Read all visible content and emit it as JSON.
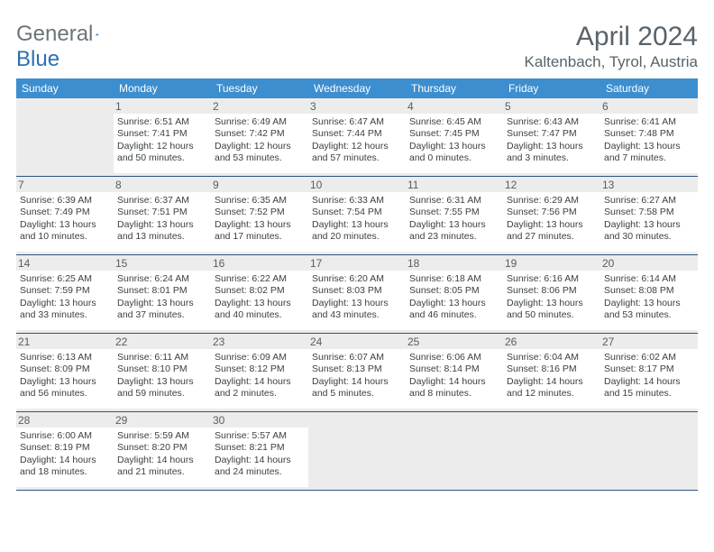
{
  "brand": {
    "text1": "General",
    "text2": "Blue",
    "color1": "#6b7478",
    "color2": "#2d6fb5"
  },
  "title": "April 2024",
  "location": "Kaltenbach, Tyrol, Austria",
  "colors": {
    "headerBar": "#3d8ecf",
    "headerText": "#ffffff",
    "cellHeader": "#ececec",
    "rule": "#2f557e",
    "text": "#3b3f42",
    "titleColor": "#58636a"
  },
  "daysOfWeek": [
    "Sunday",
    "Monday",
    "Tuesday",
    "Wednesday",
    "Thursday",
    "Friday",
    "Saturday"
  ],
  "weeks": [
    [
      null,
      {
        "n": "1",
        "sr": "6:51 AM",
        "ss": "7:41 PM",
        "dl": "12 hours and 50 minutes."
      },
      {
        "n": "2",
        "sr": "6:49 AM",
        "ss": "7:42 PM",
        "dl": "12 hours and 53 minutes."
      },
      {
        "n": "3",
        "sr": "6:47 AM",
        "ss": "7:44 PM",
        "dl": "12 hours and 57 minutes."
      },
      {
        "n": "4",
        "sr": "6:45 AM",
        "ss": "7:45 PM",
        "dl": "13 hours and 0 minutes."
      },
      {
        "n": "5",
        "sr": "6:43 AM",
        "ss": "7:47 PM",
        "dl": "13 hours and 3 minutes."
      },
      {
        "n": "6",
        "sr": "6:41 AM",
        "ss": "7:48 PM",
        "dl": "13 hours and 7 minutes."
      }
    ],
    [
      {
        "n": "7",
        "sr": "6:39 AM",
        "ss": "7:49 PM",
        "dl": "13 hours and 10 minutes."
      },
      {
        "n": "8",
        "sr": "6:37 AM",
        "ss": "7:51 PM",
        "dl": "13 hours and 13 minutes."
      },
      {
        "n": "9",
        "sr": "6:35 AM",
        "ss": "7:52 PM",
        "dl": "13 hours and 17 minutes."
      },
      {
        "n": "10",
        "sr": "6:33 AM",
        "ss": "7:54 PM",
        "dl": "13 hours and 20 minutes."
      },
      {
        "n": "11",
        "sr": "6:31 AM",
        "ss": "7:55 PM",
        "dl": "13 hours and 23 minutes."
      },
      {
        "n": "12",
        "sr": "6:29 AM",
        "ss": "7:56 PM",
        "dl": "13 hours and 27 minutes."
      },
      {
        "n": "13",
        "sr": "6:27 AM",
        "ss": "7:58 PM",
        "dl": "13 hours and 30 minutes."
      }
    ],
    [
      {
        "n": "14",
        "sr": "6:25 AM",
        "ss": "7:59 PM",
        "dl": "13 hours and 33 minutes."
      },
      {
        "n": "15",
        "sr": "6:24 AM",
        "ss": "8:01 PM",
        "dl": "13 hours and 37 minutes."
      },
      {
        "n": "16",
        "sr": "6:22 AM",
        "ss": "8:02 PM",
        "dl": "13 hours and 40 minutes."
      },
      {
        "n": "17",
        "sr": "6:20 AM",
        "ss": "8:03 PM",
        "dl": "13 hours and 43 minutes."
      },
      {
        "n": "18",
        "sr": "6:18 AM",
        "ss": "8:05 PM",
        "dl": "13 hours and 46 minutes."
      },
      {
        "n": "19",
        "sr": "6:16 AM",
        "ss": "8:06 PM",
        "dl": "13 hours and 50 minutes."
      },
      {
        "n": "20",
        "sr": "6:14 AM",
        "ss": "8:08 PM",
        "dl": "13 hours and 53 minutes."
      }
    ],
    [
      {
        "n": "21",
        "sr": "6:13 AM",
        "ss": "8:09 PM",
        "dl": "13 hours and 56 minutes."
      },
      {
        "n": "22",
        "sr": "6:11 AM",
        "ss": "8:10 PM",
        "dl": "13 hours and 59 minutes."
      },
      {
        "n": "23",
        "sr": "6:09 AM",
        "ss": "8:12 PM",
        "dl": "14 hours and 2 minutes."
      },
      {
        "n": "24",
        "sr": "6:07 AM",
        "ss": "8:13 PM",
        "dl": "14 hours and 5 minutes."
      },
      {
        "n": "25",
        "sr": "6:06 AM",
        "ss": "8:14 PM",
        "dl": "14 hours and 8 minutes."
      },
      {
        "n": "26",
        "sr": "6:04 AM",
        "ss": "8:16 PM",
        "dl": "14 hours and 12 minutes."
      },
      {
        "n": "27",
        "sr": "6:02 AM",
        "ss": "8:17 PM",
        "dl": "14 hours and 15 minutes."
      }
    ],
    [
      {
        "n": "28",
        "sr": "6:00 AM",
        "ss": "8:19 PM",
        "dl": "14 hours and 18 minutes."
      },
      {
        "n": "29",
        "sr": "5:59 AM",
        "ss": "8:20 PM",
        "dl": "14 hours and 21 minutes."
      },
      {
        "n": "30",
        "sr": "5:57 AM",
        "ss": "8:21 PM",
        "dl": "14 hours and 24 minutes."
      },
      null,
      null,
      null,
      null
    ]
  ],
  "labels": {
    "sunrise": "Sunrise:",
    "sunset": "Sunset:",
    "daylight": "Daylight:"
  }
}
